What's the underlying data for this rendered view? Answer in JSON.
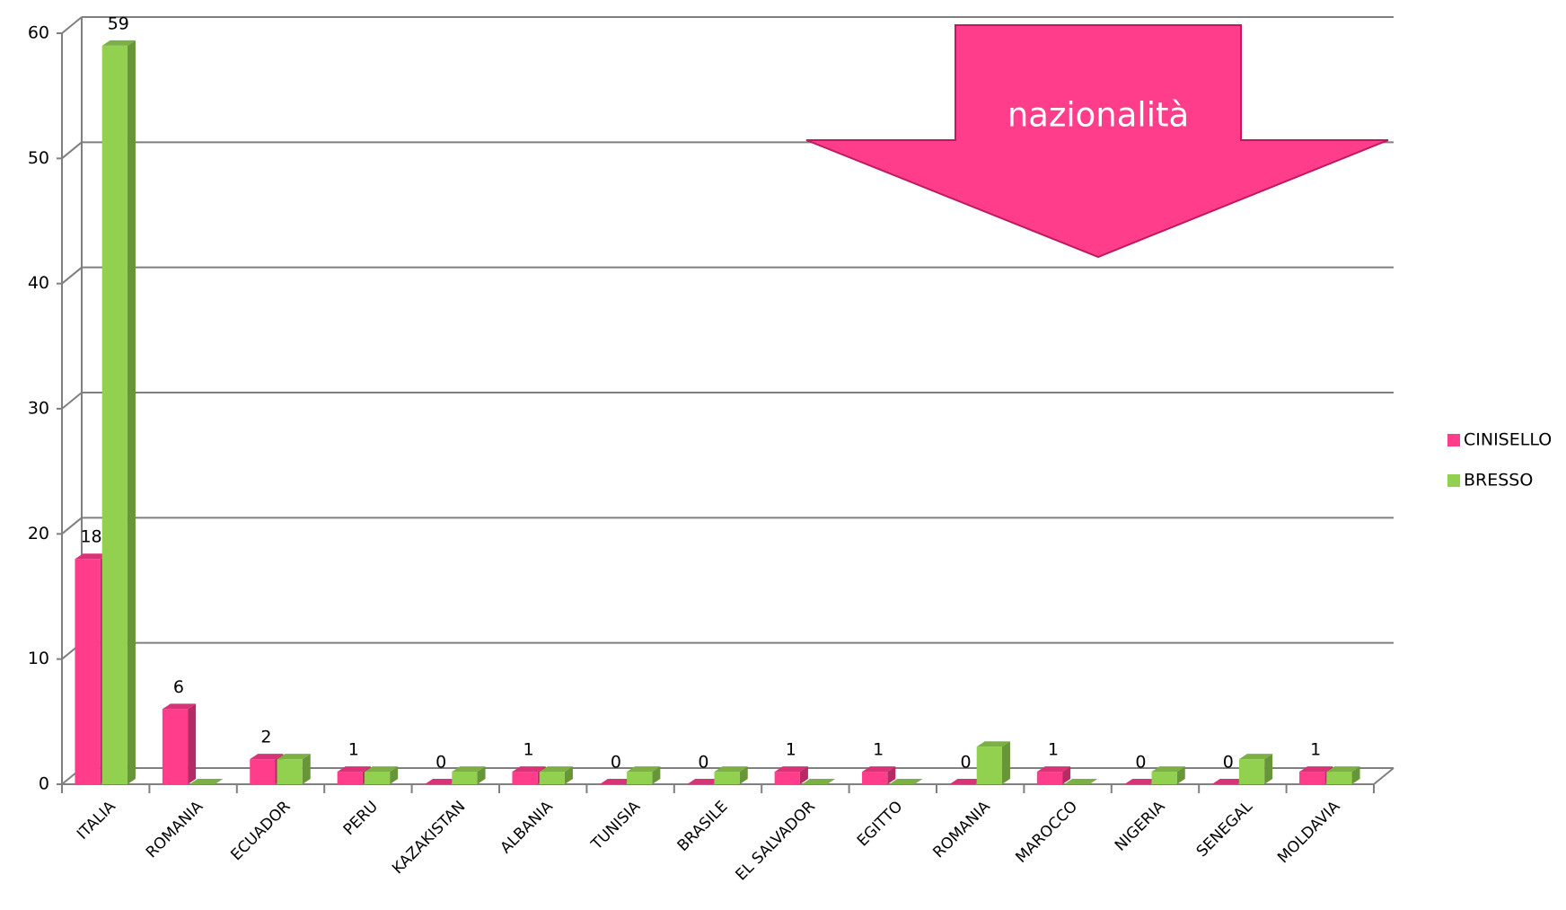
{
  "chart_data": {
    "type": "bar",
    "annotation": "nazionalità",
    "categories": [
      "ITALIA",
      "ROMANIA",
      "ECUADOR",
      "PERU",
      "KAZAKISTAN",
      "ALBANIA",
      "TUNISIA",
      "BRASILE",
      "EL SALVADOR",
      "EGITTO",
      "ROMANIA",
      "MAROCCO",
      "NIGERIA",
      "SENEGAL",
      "MOLDAVIA"
    ],
    "series": [
      {
        "name": "CINISELLO",
        "color": "#ff3d8b",
        "values": [
          18,
          6,
          2,
          1,
          0,
          1,
          0,
          0,
          1,
          1,
          0,
          1,
          0,
          0,
          1
        ],
        "value_labels": [
          "18",
          "6",
          "2",
          "1",
          "0",
          "1",
          "0",
          "0",
          "1",
          "1",
          "0",
          "1",
          "0",
          "0",
          "1"
        ]
      },
      {
        "name": "BRESSO",
        "color": "#92d050",
        "values": [
          59,
          0,
          2,
          1,
          1,
          1,
          1,
          1,
          0,
          0,
          3,
          0,
          1,
          2,
          1
        ],
        "value_labels": [
          "59",
          null,
          null,
          null,
          null,
          null,
          null,
          null,
          null,
          null,
          null,
          null,
          null,
          null,
          null
        ]
      }
    ],
    "ylim": [
      0,
      60
    ],
    "yticks": [
      0,
      10,
      20,
      30,
      40,
      50,
      60
    ],
    "grid": true,
    "legend": "right"
  }
}
